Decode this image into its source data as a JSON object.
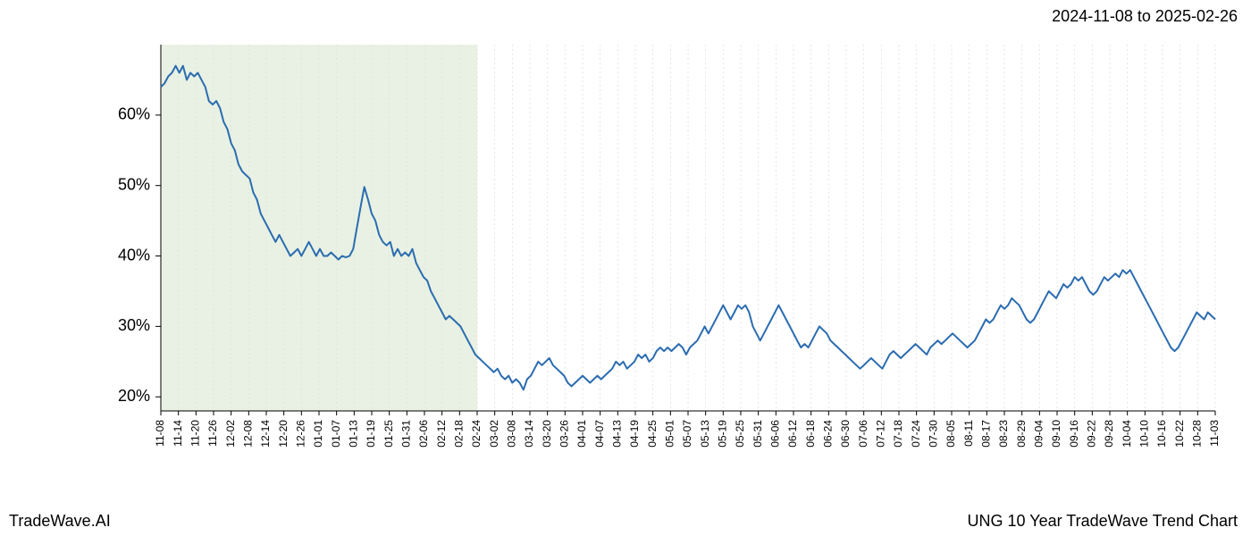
{
  "date_range_label": "2024-11-08 to 2025-02-26",
  "footer_left": "TradeWave.AI",
  "footer_right": "UNG 10 Year TradeWave Trend Chart",
  "chart": {
    "type": "line",
    "background_color": "#ffffff",
    "grid_color": "#cccccc",
    "line_color": "#2b6cb0",
    "line_width": 2,
    "highlight_fill": "#d8e8d0",
    "highlight_opacity": 0.6,
    "axis_color": "#000000",
    "y_tick_fontsize": 18,
    "x_tick_fontsize": 12,
    "ylim": [
      18,
      70
    ],
    "y_ticks": [
      20,
      30,
      40,
      50,
      60
    ],
    "y_tick_labels": [
      "20%",
      "30%",
      "40%",
      "50%",
      "60%"
    ],
    "x_labels": [
      "11-08",
      "11-14",
      "11-20",
      "11-26",
      "12-02",
      "12-08",
      "12-14",
      "12-20",
      "12-26",
      "01-01",
      "01-07",
      "01-13",
      "01-19",
      "01-25",
      "01-31",
      "02-06",
      "02-12",
      "02-18",
      "02-24",
      "03-02",
      "03-08",
      "03-14",
      "03-20",
      "03-26",
      "04-01",
      "04-07",
      "04-13",
      "04-19",
      "04-25",
      "05-01",
      "05-07",
      "05-13",
      "05-19",
      "05-25",
      "05-31",
      "06-06",
      "06-12",
      "06-18",
      "06-24",
      "06-30",
      "07-06",
      "07-12",
      "07-18",
      "07-24",
      "07-30",
      "08-05",
      "08-11",
      "08-17",
      "08-23",
      "08-29",
      "09-04",
      "09-10",
      "09-16",
      "09-22",
      "09-28",
      "10-04",
      "10-10",
      "10-16",
      "10-22",
      "10-28",
      "11-03"
    ],
    "highlight_start_index": 0,
    "highlight_end_index": 18,
    "values": [
      64,
      64.5,
      65.5,
      66,
      67,
      66,
      67,
      65,
      66,
      65.5,
      66,
      65,
      64,
      62,
      61.5,
      62,
      61,
      59,
      58,
      56,
      55,
      53,
      52,
      51.5,
      51,
      49,
      48,
      46,
      45,
      44,
      43,
      42,
      43,
      42,
      41,
      40,
      40.5,
      41,
      40,
      41,
      42,
      41,
      40,
      41,
      40,
      40,
      40.5,
      40,
      39.5,
      40,
      39.8,
      40,
      41,
      44,
      47,
      49.8,
      48,
      46,
      45,
      43,
      42,
      41.5,
      42,
      40,
      41,
      40,
      40.5,
      40,
      41,
      39,
      38,
      37,
      36.5,
      35,
      34,
      33,
      32,
      31,
      31.5,
      31,
      30.5,
      30,
      29,
      28,
      27,
      26,
      25.5,
      25,
      24.5,
      24,
      23.5,
      24,
      23,
      22.5,
      23,
      22,
      22.5,
      22,
      21,
      22.5,
      23,
      24,
      25,
      24.5,
      25,
      25.5,
      24.5,
      24,
      23.5,
      23,
      22,
      21.5,
      22,
      22.5,
      23,
      22.5,
      22,
      22.5,
      23,
      22.5,
      23,
      23.5,
      24,
      25,
      24.5,
      25,
      24,
      24.5,
      25,
      26,
      25.5,
      26,
      25,
      25.5,
      26.5,
      27,
      26.5,
      27,
      26.5,
      27,
      27.5,
      27,
      26,
      27,
      27.5,
      28,
      29,
      30,
      29,
      30,
      31,
      32,
      33,
      32,
      31,
      32,
      33,
      32.5,
      33,
      32,
      30,
      29,
      28,
      29,
      30,
      31,
      32,
      33,
      32,
      31,
      30,
      29,
      28,
      27,
      27.5,
      27,
      28,
      29,
      30,
      29.5,
      29,
      28,
      27.5,
      27,
      26.5,
      26,
      25.5,
      25,
      24.5,
      24,
      24.5,
      25,
      25.5,
      25,
      24.5,
      24,
      25,
      26,
      26.5,
      26,
      25.5,
      26,
      26.5,
      27,
      27.5,
      27,
      26.5,
      26,
      27,
      27.5,
      28,
      27.5,
      28,
      28.5,
      29,
      28.5,
      28,
      27.5,
      27,
      27.5,
      28,
      29,
      30,
      31,
      30.5,
      31,
      32,
      33,
      32.5,
      33,
      34,
      33.5,
      33,
      32,
      31,
      30.5,
      31,
      32,
      33,
      34,
      35,
      34.5,
      34,
      35,
      36,
      35.5,
      36,
      37,
      36.5,
      37,
      36,
      35,
      34.5,
      35,
      36,
      37,
      36.5,
      37,
      37.5,
      37,
      38,
      37.5,
      38,
      37,
      36,
      35,
      34,
      33,
      32,
      31,
      30,
      29,
      28,
      27,
      26.5,
      27,
      28,
      29,
      30,
      31,
      32,
      31.5,
      31,
      32,
      31.5,
      31
    ]
  }
}
